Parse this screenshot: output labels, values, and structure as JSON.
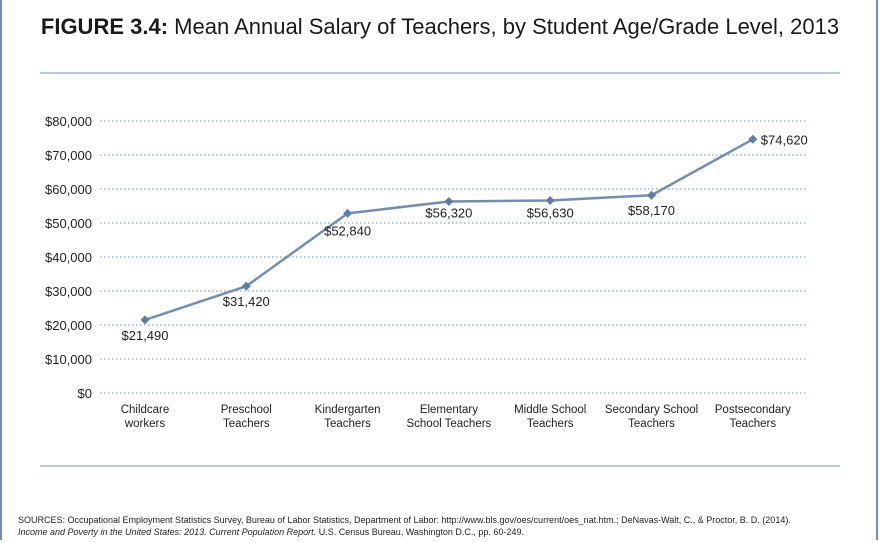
{
  "title": {
    "figure_label": "FIGURE 3.4:",
    "text": "Mean Annual Salary of Teachers, by Student Age/Grade Level, 2013"
  },
  "colors": {
    "line": "#6f8fb3",
    "marker": "#5b7fa8",
    "grid": "#8aa6c8",
    "rule": "#b9c9dc"
  },
  "chart_data": {
    "type": "line",
    "title": "Mean Annual Salary of Teachers, by Student Age/Grade Level, 2013",
    "categories": [
      [
        "Childcare",
        "workers"
      ],
      [
        "Preschool",
        "Teachers"
      ],
      [
        "Kindergarten",
        "Teachers"
      ],
      [
        "Elementary",
        "School Teachers"
      ],
      [
        "Middle School",
        "Teachers"
      ],
      [
        "Secondary School",
        "Teachers"
      ],
      [
        "Postsecondary",
        "Teachers"
      ]
    ],
    "values": [
      21490,
      31420,
      52840,
      56320,
      56630,
      58170,
      74620
    ],
    "data_labels": [
      "$21,490",
      "$31,420",
      "$52,840",
      "$56,320",
      "$56,630",
      "$58,170",
      "$74,620"
    ],
    "yticks": [
      0,
      10000,
      20000,
      30000,
      40000,
      50000,
      60000,
      70000,
      80000
    ],
    "ytick_labels": [
      "$0",
      "$10,000",
      "$20,000",
      "$30,000",
      "$40,000",
      "$50,000",
      "$60,000",
      "$70,000",
      "$80,000"
    ],
    "ylim": [
      0,
      80000
    ],
    "grid": true,
    "grid_style": "dotted",
    "xlabel": "",
    "ylabel": ""
  },
  "sources": {
    "line1": "SOURCES: Occupational Employment Statistics Survey, Bureau of Labor Statistics, Department of Labor: http://www.bls.gov/oes/current/oes_nat.htm.; DeNavas-Walt, C., & Proctor, B. D. (2014).",
    "line2_italic": "Income and Poverty in the United States: 2013. Current Population Report.",
    "line2_rest": " U.S. Census Bureau, Washington D.C., pp. 60-249."
  }
}
